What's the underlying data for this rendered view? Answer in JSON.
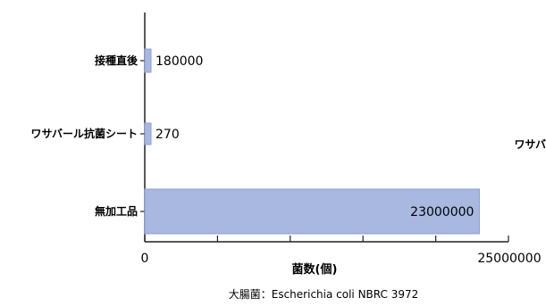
{
  "chart_data": {
    "type": "bar",
    "orientation": "horizontal",
    "categories": [
      "接種直後",
      "ワサバール抗菌シート",
      "無加工品"
    ],
    "values": [
      180000,
      270,
      23000000
    ],
    "value_labels": [
      "180000",
      "270",
      "23000000"
    ],
    "xlabel": "菌数(個)",
    "xlim": [
      0,
      25000000
    ],
    "x_tick_labels": [
      "0",
      "25000000"
    ],
    "caption": "大腸菌：Escherichia coli NBRC 3972",
    "cut_off_right_label": "ワサバ",
    "grid": false,
    "bar_color": "#a8b8e0",
    "bar_edge_color": "#8a9fd4",
    "axis_color": "#222222"
  }
}
